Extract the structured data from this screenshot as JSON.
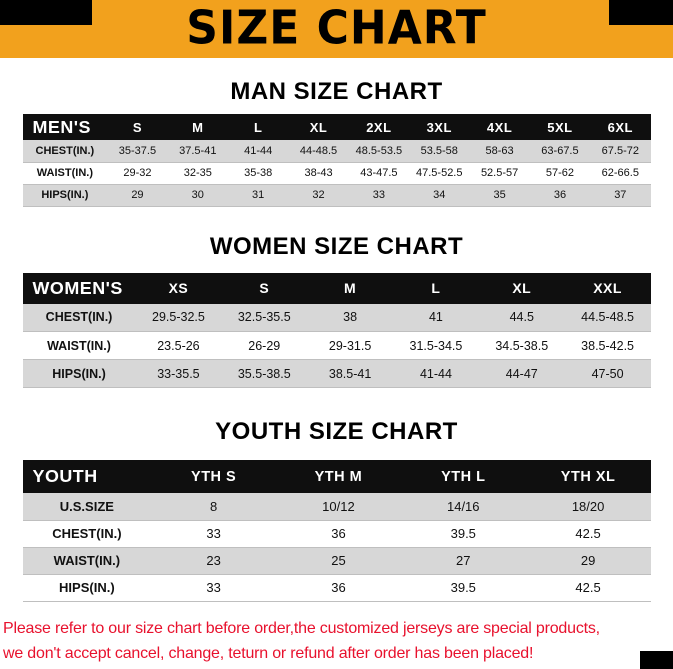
{
  "title": "SIZE CHART",
  "sections": [
    {
      "heading": "MAN SIZE CHART",
      "table": {
        "columns": [
          "MEN'S",
          "S",
          "M",
          "L",
          "XL",
          "2XL",
          "3XL",
          "4XL",
          "5XL",
          "6XL"
        ],
        "rows": [
          [
            "CHEST(IN.)",
            "35-37.5",
            "37.5-41",
            "41-44",
            "44-48.5",
            "48.5-53.5",
            "53.5-58",
            "58-63",
            "63-67.5",
            "67.5-72"
          ],
          [
            "WAIST(IN.)",
            "29-32",
            "32-35",
            "35-38",
            "38-43",
            "43-47.5",
            "47.5-52.5",
            "52.5-57",
            "57-62",
            "62-66.5"
          ],
          [
            "HIPS(IN.)",
            "29",
            "30",
            "31",
            "32",
            "33",
            "34",
            "35",
            "36",
            "37"
          ]
        ]
      }
    },
    {
      "heading": "WOMEN SIZE CHART",
      "table": {
        "columns": [
          "WOMEN'S",
          "XS",
          "S",
          "M",
          "L",
          "XL",
          "XXL"
        ],
        "rows": [
          [
            "CHEST(IN.)",
            "29.5-32.5",
            "32.5-35.5",
            "38",
            "41",
            "44.5",
            "44.5-48.5"
          ],
          [
            "WAIST(IN.)",
            "23.5-26",
            "26-29",
            "29-31.5",
            "31.5-34.5",
            "34.5-38.5",
            "38.5-42.5"
          ],
          [
            "HIPS(IN.)",
            "33-35.5",
            "35.5-38.5",
            "38.5-41",
            "41-44",
            "44-47",
            "47-50"
          ]
        ]
      }
    },
    {
      "heading": "YOUTH SIZE CHART",
      "table": {
        "columns": [
          "YOUTH",
          "YTH S",
          "YTH M",
          "YTH L",
          "YTH XL"
        ],
        "rows": [
          [
            "U.S.SIZE",
            "8",
            "10/12",
            "14/16",
            "18/20"
          ],
          [
            "CHEST(IN.)",
            "33",
            "36",
            "39.5",
            "42.5"
          ],
          [
            "WAIST(IN.)",
            "23",
            "25",
            "27",
            "29"
          ],
          [
            "HIPS(IN.)",
            "33",
            "36",
            "39.5",
            "42.5"
          ]
        ]
      }
    }
  ],
  "footer": {
    "line1": "Please refer to our size chart before order,the customized jerseys are special products,",
    "line2": "we don't accept cancel, change, teturn or refund after order has been placed!"
  },
  "colors": {
    "banner_bg": "#F2A11D",
    "table_header_bg": "#0F0F0F",
    "row_alt_bg": "#D7D7D7",
    "row_bg": "#FFFFFF",
    "footer_text": "#E8112D"
  }
}
